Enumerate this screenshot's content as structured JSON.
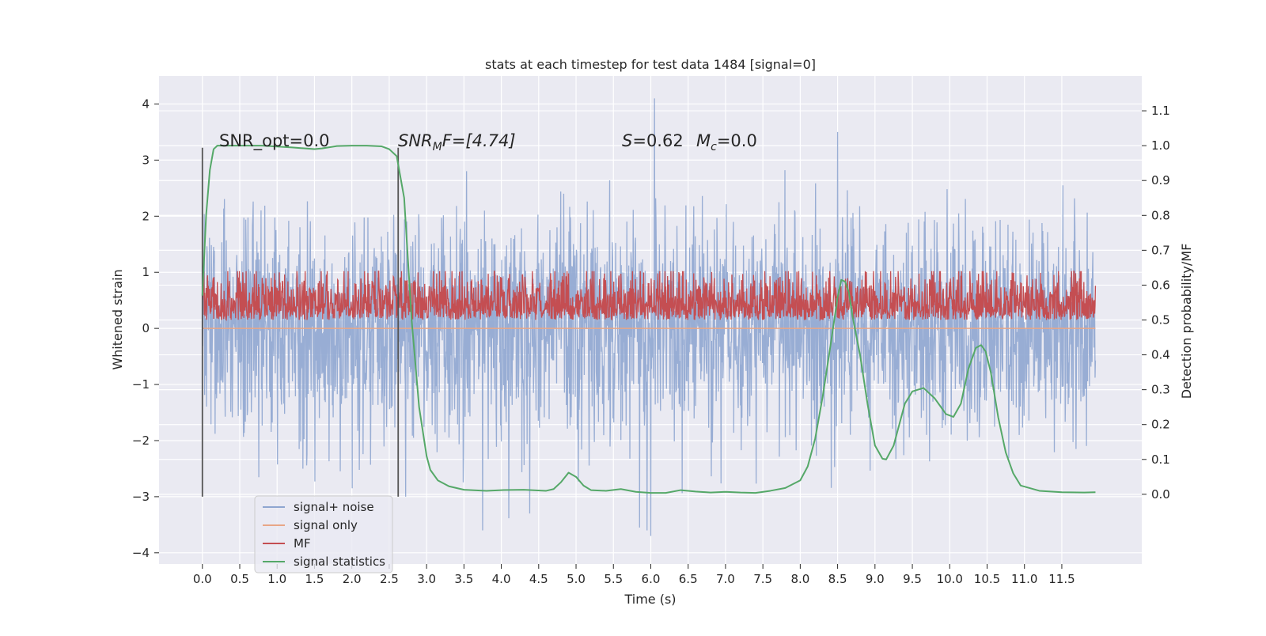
{
  "chart_data": {
    "type": "line",
    "title": "stats at each timestep for test data 1484 [signal=0]",
    "xlabel": "Time (s)",
    "ylabel": "Whitened strain",
    "ylabel_right": "Detection probability/MF",
    "xlim": [
      -0.58,
      12.57
    ],
    "ylim": [
      -4.2,
      4.5
    ],
    "ylim_right": [
      -0.2,
      1.2
    ],
    "xticks": [
      "0.0",
      "0.5",
      "1.0",
      "1.5",
      "2.0",
      "2.5",
      "3.0",
      "3.5",
      "4.0",
      "4.5",
      "5.0",
      "5.5",
      "6.0",
      "6.5",
      "7.0",
      "7.5",
      "8.0",
      "8.5",
      "9.0",
      "9.5",
      "10.0",
      "10.5",
      "11.0",
      "11.5"
    ],
    "yticks": [
      "4",
      "3",
      "2",
      "1",
      "0",
      "−1",
      "−2",
      "−3",
      "−4"
    ],
    "yticks_right": [
      "1.1",
      "1.0",
      "0.9",
      "0.8",
      "0.7",
      "0.6",
      "0.5",
      "0.4",
      "0.3",
      "0.2",
      "0.1",
      "0.0"
    ],
    "grid": true,
    "legend_position": "lower-left",
    "annotations": {
      "snr_opt": "SNR_opt=0.0",
      "snr_mf_base": "SNR",
      "snr_mf_sub": "M",
      "snr_mf_rest": "F=[4.74]",
      "s_sym": "S",
      "s_val": "=0.62",
      "mc_sym": "M",
      "mc_sub": "c",
      "mc_val": "=0.0"
    },
    "vertical_markers": [
      0.0,
      2.62
    ],
    "series": [
      {
        "name": "signal+ noise",
        "color": "#8fa6d0",
        "axis": "left",
        "x_range": [
          0.0,
          11.95
        ],
        "sample_rate": 200,
        "distribution": "gaussian",
        "mean": 0.0,
        "std": 1.0,
        "noise_seed": 1484,
        "visible_extremes": [
          [
            6.05,
            4.1
          ],
          [
            5.95,
            -3.6
          ],
          [
            2.72,
            -3.0
          ],
          [
            4.38,
            -3.3
          ],
          [
            8.5,
            3.5
          ],
          [
            3.75,
            -3.6
          ],
          [
            5.85,
            -3.55
          ],
          [
            6.0,
            -3.7
          ]
        ]
      },
      {
        "name": "signal only",
        "color": "#e8a686",
        "axis": "left",
        "x": [
          0.0,
          11.95
        ],
        "y": [
          0.0,
          0.0
        ]
      },
      {
        "name": "MF",
        "color": "#c44e52",
        "axis": "right",
        "x_range": [
          0.0,
          11.95
        ],
        "sample_rate": 200,
        "distribution": "abs-gaussian",
        "baseline": 0.5,
        "scale": 0.065,
        "clip_max": 0.64,
        "noise_seed": 7
      },
      {
        "name": "signal statistics",
        "color": "#55a868",
        "axis": "right",
        "x": [
          0.0,
          0.05,
          0.1,
          0.15,
          0.2,
          0.3,
          0.5,
          0.8,
          1.2,
          1.5,
          1.6,
          1.8,
          2.0,
          2.2,
          2.4,
          2.5,
          2.6,
          2.7,
          2.8,
          2.9,
          3.0,
          3.05,
          3.15,
          3.3,
          3.5,
          3.8,
          4.0,
          4.3,
          4.6,
          4.7,
          4.8,
          4.9,
          5.0,
          5.1,
          5.2,
          5.4,
          5.6,
          5.8,
          6.0,
          6.2,
          6.4,
          6.6,
          6.8,
          7.0,
          7.2,
          7.4,
          7.6,
          7.8,
          8.0,
          8.1,
          8.2,
          8.3,
          8.4,
          8.5,
          8.55,
          8.6,
          8.65,
          8.7,
          8.8,
          8.9,
          9.0,
          9.1,
          9.15,
          9.25,
          9.4,
          9.5,
          9.65,
          9.8,
          9.95,
          10.05,
          10.15,
          10.25,
          10.35,
          10.42,
          10.48,
          10.55,
          10.65,
          10.75,
          10.85,
          10.95,
          11.2,
          11.5,
          11.8,
          11.95
        ],
        "y": [
          0.57,
          0.8,
          0.93,
          0.99,
          1.0,
          1.0,
          1.0,
          1.0,
          0.995,
          0.99,
          0.992,
          0.999,
          1.0,
          1.0,
          0.998,
          0.99,
          0.97,
          0.85,
          0.5,
          0.25,
          0.11,
          0.07,
          0.04,
          0.023,
          0.013,
          0.01,
          0.012,
          0.013,
          0.01,
          0.015,
          0.035,
          0.062,
          0.05,
          0.025,
          0.012,
          0.01,
          0.015,
          0.007,
          0.004,
          0.004,
          0.012,
          0.008,
          0.005,
          0.007,
          0.005,
          0.004,
          0.01,
          0.018,
          0.04,
          0.08,
          0.16,
          0.28,
          0.42,
          0.565,
          0.615,
          0.61,
          0.58,
          0.51,
          0.4,
          0.26,
          0.14,
          0.102,
          0.1,
          0.14,
          0.26,
          0.295,
          0.305,
          0.275,
          0.23,
          0.222,
          0.26,
          0.36,
          0.42,
          0.428,
          0.41,
          0.35,
          0.22,
          0.12,
          0.06,
          0.025,
          0.01,
          0.006,
          0.005,
          0.006
        ]
      }
    ]
  }
}
